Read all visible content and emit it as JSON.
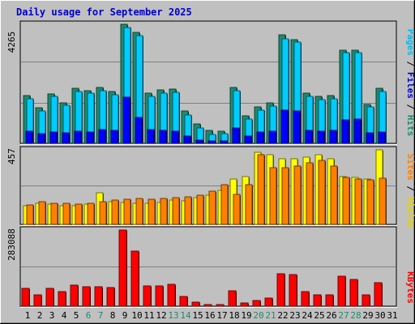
{
  "chart_data": [
    {
      "type": "bar",
      "title": "Daily usage for September 2025",
      "panel": "hits-files-pages",
      "ymax_label": "4265",
      "ylim": [
        0,
        4265
      ],
      "legend": {
        "pages": "Pages",
        "files": "Files",
        "hits": "Hits",
        "sep1": " / ",
        "sep2": " / "
      },
      "categories": [
        "1",
        "2",
        "3",
        "4",
        "5",
        "6",
        "7",
        "8",
        "9",
        "10",
        "11",
        "12",
        "13",
        "14",
        "15",
        "16",
        "17",
        "18",
        "19",
        "20",
        "21",
        "22",
        "23",
        "24",
        "25",
        "26",
        "27",
        "28",
        "29",
        "30",
        "31"
      ],
      "weekend_days": [
        "6",
        "7",
        "13",
        "14",
        "20",
        "21",
        "27",
        "28"
      ],
      "series": [
        {
          "name": "Hits",
          "color": "#1e8b6e",
          "values": [
            1710,
            1280,
            1770,
            1440,
            1960,
            1900,
            2000,
            1860,
            4265,
            3980,
            1790,
            1910,
            1930,
            1150,
            700,
            450,
            430,
            1990,
            1000,
            1320,
            1440,
            3880,
            3720,
            1800,
            1690,
            1710,
            3340,
            3340,
            1400,
            1960,
            0
          ]
        },
        {
          "name": "Files",
          "color": "#00ccff",
          "values": [
            1600,
            1160,
            1680,
            1350,
            1860,
            1790,
            1880,
            1740,
            4150,
            3850,
            1680,
            1810,
            1830,
            1020,
            550,
            330,
            340,
            1880,
            880,
            1200,
            1340,
            3750,
            3620,
            1680,
            1570,
            1600,
            3240,
            3240,
            1300,
            1860,
            0
          ]
        },
        {
          "name": "Pages",
          "color": "#0000ff",
          "values": [
            440,
            340,
            410,
            380,
            430,
            420,
            480,
            450,
            1660,
            920,
            480,
            470,
            430,
            270,
            130,
            80,
            90,
            560,
            270,
            410,
            430,
            1200,
            1150,
            450,
            440,
            460,
            850,
            860,
            370,
            420,
            0
          ]
        }
      ]
    },
    {
      "type": "bar",
      "panel": "visits-sites",
      "ymax_label": "457",
      "ylim": [
        0,
        457
      ],
      "legend": {
        "sites": "Sites",
        "visits": "Visits",
        "sep": " / "
      },
      "categories": [
        "1",
        "2",
        "3",
        "4",
        "5",
        "6",
        "7",
        "8",
        "9",
        "10",
        "11",
        "12",
        "13",
        "14",
        "15",
        "16",
        "17",
        "18",
        "19",
        "20",
        "21",
        "22",
        "23",
        "24",
        "25",
        "26",
        "27",
        "28",
        "29",
        "30",
        "31"
      ],
      "series": [
        {
          "name": "Visits",
          "color": "#ffff00",
          "values": [
            115,
            130,
            125,
            115,
            115,
            125,
            195,
            140,
            135,
            130,
            130,
            135,
            150,
            145,
            165,
            180,
            210,
            280,
            295,
            440,
            425,
            400,
            400,
            410,
            425,
            400,
            295,
            290,
            280,
            455,
            0
          ]
        },
        {
          "name": "Sites",
          "color": "#ff8000",
          "values": [
            120,
            140,
            130,
            130,
            125,
            130,
            140,
            150,
            155,
            160,
            155,
            160,
            165,
            170,
            180,
            205,
            245,
            185,
            245,
            425,
            350,
            350,
            360,
            380,
            390,
            360,
            290,
            280,
            275,
            285,
            0
          ]
        }
      ]
    },
    {
      "type": "bar",
      "panel": "kbytes",
      "ymax_label": "283088",
      "ylim": [
        0,
        283088
      ],
      "legend": {
        "kbytes": "KBytes"
      },
      "categories": [
        "1",
        "2",
        "3",
        "4",
        "5",
        "6",
        "7",
        "8",
        "9",
        "10",
        "11",
        "12",
        "13",
        "14",
        "15",
        "16",
        "17",
        "18",
        "19",
        "20",
        "21",
        "22",
        "23",
        "24",
        "25",
        "26",
        "27",
        "28",
        "29",
        "30",
        "31"
      ],
      "series": [
        {
          "name": "KBytes",
          "color": "#ff0000",
          "values": [
            65000,
            43000,
            67000,
            55000,
            77000,
            72000,
            72000,
            68000,
            283088,
            205000,
            74000,
            76000,
            82000,
            36000,
            15000,
            7000,
            6000,
            58000,
            13000,
            22000,
            29000,
            119000,
            116000,
            54000,
            42000,
            42000,
            112000,
            100000,
            42000,
            88000,
            0
          ]
        }
      ]
    }
  ]
}
